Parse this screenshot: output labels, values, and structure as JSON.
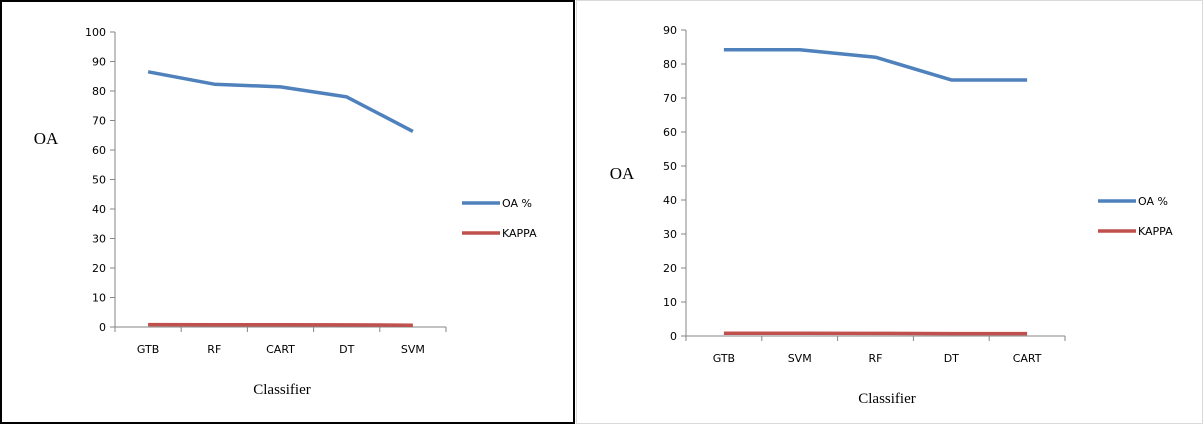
{
  "colors": {
    "oa": "#4f81bd",
    "kappa": "#c0504d",
    "axis": "#868686"
  },
  "chart_data": [
    {
      "type": "line",
      "categories": [
        "GTB",
        "RF",
        "CART",
        "DT",
        "SVM"
      ],
      "series": [
        {
          "name": "OA %",
          "values": [
            86.5,
            82.3,
            81.4,
            78.0,
            66.3
          ]
        },
        {
          "name": "KAPPA",
          "values": [
            0.8,
            0.78,
            0.77,
            0.74,
            0.6
          ]
        }
      ],
      "title": "",
      "xlabel": "Classifier",
      "ylabel": "OA",
      "ylim": [
        0,
        100
      ],
      "yticks": [
        "0",
        "10",
        "20",
        "30",
        "40",
        "50",
        "60",
        "70",
        "80",
        "90",
        "100"
      ],
      "grid": false,
      "legend": "right"
    },
    {
      "type": "line",
      "categories": [
        "GTB",
        "SVM",
        "RF",
        "DT",
        "CART"
      ],
      "series": [
        {
          "name": "OA %",
          "values": [
            84.2,
            84.2,
            82.0,
            75.3,
            75.3
          ]
        },
        {
          "name": "KAPPA",
          "values": [
            0.8,
            0.8,
            0.78,
            0.71,
            0.71
          ]
        }
      ],
      "title": "",
      "xlabel": "Classifier",
      "ylabel": "OA",
      "ylim": [
        0,
        90
      ],
      "yticks": [
        "0",
        "10",
        "20",
        "30",
        "40",
        "50",
        "60",
        "70",
        "80",
        "90"
      ],
      "grid": false,
      "legend": "right"
    }
  ]
}
